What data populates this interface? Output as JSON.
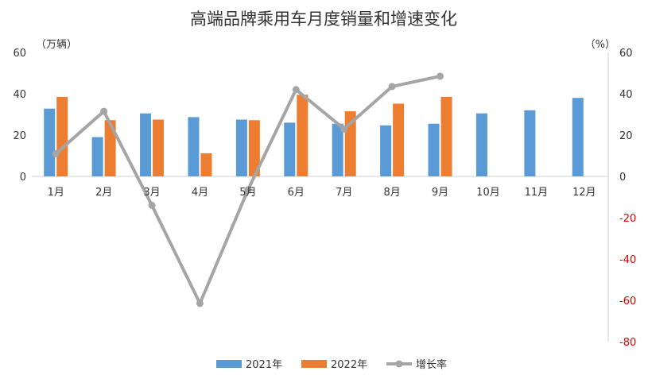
{
  "chart_data": {
    "type": "bar",
    "title": "高端品牌乘用车月度销量和增速变化",
    "left_unit": "（万辆）",
    "right_unit": "（%）",
    "categories": [
      "1月",
      "2月",
      "3月",
      "4月",
      "5月",
      "6月",
      "7月",
      "8月",
      "9月",
      "10月",
      "11月",
      "12月"
    ],
    "series": [
      {
        "name": "2021年",
        "kind": "bar",
        "axis": "left",
        "color": "#5b9bd5",
        "values": [
          32.8,
          19.0,
          30.5,
          28.7,
          27.5,
          26.0,
          25.5,
          24.7,
          25.5,
          30.5,
          32.0,
          38.0
        ]
      },
      {
        "name": "2022年",
        "kind": "bar",
        "axis": "left",
        "color": "#ed7d31",
        "values": [
          38.5,
          27.2,
          27.5,
          11.2,
          27.2,
          39.5,
          31.5,
          35.2,
          38.5,
          null,
          null,
          null
        ]
      },
      {
        "name": "增长率",
        "kind": "line",
        "axis": "right",
        "color": "#a5a5a5",
        "values": [
          11,
          31.5,
          -14,
          -61.5,
          -6.5,
          42,
          23,
          43.5,
          48.5,
          null,
          null,
          null
        ]
      }
    ],
    "left_axis": {
      "min": 0,
      "max": 60,
      "ticks": [
        "0",
        "20",
        "40",
        "60"
      ]
    },
    "right_axis": {
      "min": -80,
      "max": 60,
      "ticks": [
        "60",
        "40",
        "20",
        "0",
        "-20",
        "-40",
        "-60",
        "-80"
      ]
    },
    "negative_tick_color": "#e00000",
    "legend_position": "bottom"
  }
}
